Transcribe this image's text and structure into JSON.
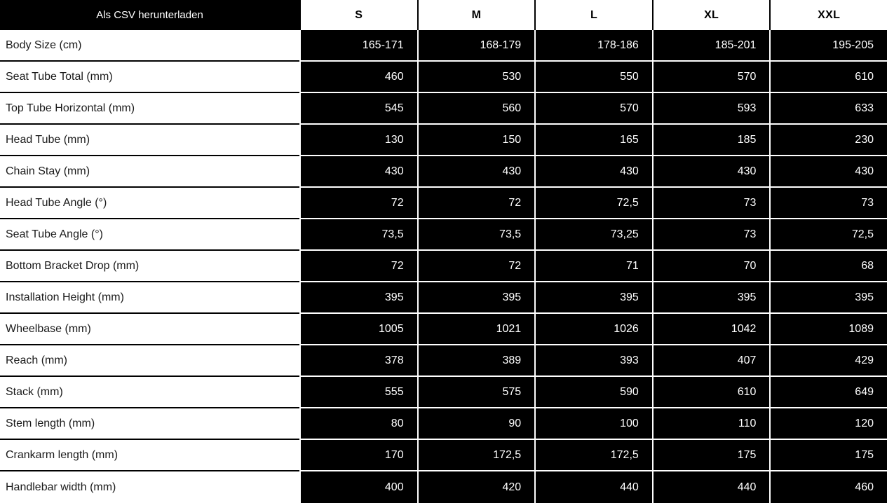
{
  "header": {
    "download_csv_label": "Als CSV herunterladen",
    "size_columns": [
      "S",
      "M",
      "L",
      "XL",
      "XXL"
    ]
  },
  "table": {
    "rows": [
      {
        "label": "Body Size (cm)",
        "values": [
          "165-171",
          "168-179",
          "178-186",
          "185-201",
          "195-205"
        ]
      },
      {
        "label": "Seat Tube Total (mm)",
        "values": [
          "460",
          "530",
          "550",
          "570",
          "610"
        ]
      },
      {
        "label": "Top Tube Horizontal (mm)",
        "values": [
          "545",
          "560",
          "570",
          "593",
          "633"
        ]
      },
      {
        "label": "Head Tube (mm)",
        "values": [
          "130",
          "150",
          "165",
          "185",
          "230"
        ]
      },
      {
        "label": "Chain Stay (mm)",
        "values": [
          "430",
          "430",
          "430",
          "430",
          "430"
        ]
      },
      {
        "label": "Head Tube Angle (°)",
        "values": [
          "72",
          "72",
          "72,5",
          "73",
          "73"
        ]
      },
      {
        "label": "Seat Tube Angle (°)",
        "values": [
          "73,5",
          "73,5",
          "73,25",
          "73",
          "72,5"
        ]
      },
      {
        "label": "Bottom Bracket Drop (mm)",
        "values": [
          "72",
          "72",
          "71",
          "70",
          "68"
        ]
      },
      {
        "label": "Installation Height (mm)",
        "values": [
          "395",
          "395",
          "395",
          "395",
          "395"
        ]
      },
      {
        "label": "Wheelbase (mm)",
        "values": [
          "1005",
          "1021",
          "1026",
          "1042",
          "1089"
        ]
      },
      {
        "label": "Reach (mm)",
        "values": [
          "378",
          "389",
          "393",
          "407",
          "429"
        ]
      },
      {
        "label": "Stack (mm)",
        "values": [
          "555",
          "575",
          "590",
          "610",
          "649"
        ]
      },
      {
        "label": "Stem length (mm)",
        "values": [
          "80",
          "90",
          "100",
          "110",
          "120"
        ]
      },
      {
        "label": "Crankarm length (mm)",
        "values": [
          "170",
          "172,5",
          "172,5",
          "175",
          "175"
        ]
      },
      {
        "label": "Handlebar width (mm)",
        "values": [
          "400",
          "420",
          "440",
          "440",
          "460"
        ]
      }
    ]
  },
  "colors": {
    "value_cell_background": "#000000",
    "value_cell_text": "#ffffff",
    "label_text": "#1a1a1a",
    "divider_black": "#000000",
    "divider_white": "#ffffff"
  }
}
